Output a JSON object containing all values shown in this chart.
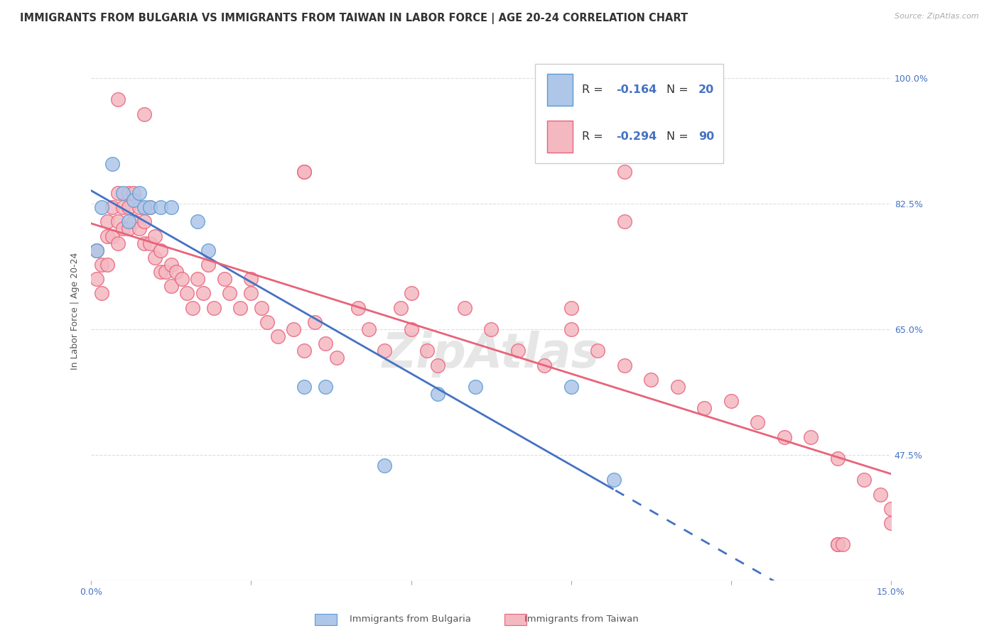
{
  "title": "IMMIGRANTS FROM BULGARIA VS IMMIGRANTS FROM TAIWAN IN LABOR FORCE | AGE 20-24 CORRELATION CHART",
  "source": "Source: ZipAtlas.com",
  "ylabel": "In Labor Force | Age 20-24",
  "xlim": [
    0.0,
    0.15
  ],
  "ylim": [
    0.3,
    1.05
  ],
  "xticks": [
    0.0,
    0.03,
    0.06,
    0.09,
    0.12,
    0.15
  ],
  "xtick_labels": [
    "0.0%",
    "",
    "",
    "",
    "",
    "15.0%"
  ],
  "ytick_labels_right": [
    "100.0%",
    "82.5%",
    "65.0%",
    "47.5%"
  ],
  "ytick_vals_right": [
    1.0,
    0.825,
    0.65,
    0.475
  ],
  "bulgaria_color": "#aec6e8",
  "taiwan_color": "#f4b8c1",
  "bulgaria_edge": "#5b9bd5",
  "taiwan_edge": "#e8637a",
  "trend_bulgaria_color": "#4472c4",
  "trend_taiwan_color": "#e8637a",
  "R_bulgaria": -0.164,
  "N_bulgaria": 20,
  "R_taiwan": -0.294,
  "N_taiwan": 90,
  "bulgaria_x": [
    0.001,
    0.002,
    0.004,
    0.006,
    0.007,
    0.008,
    0.009,
    0.01,
    0.011,
    0.013,
    0.015,
    0.02,
    0.022,
    0.04,
    0.044,
    0.055,
    0.065,
    0.072,
    0.09,
    0.098
  ],
  "bulgaria_y": [
    0.76,
    0.82,
    0.88,
    0.84,
    0.8,
    0.83,
    0.84,
    0.82,
    0.82,
    0.82,
    0.82,
    0.8,
    0.76,
    0.57,
    0.57,
    0.46,
    0.56,
    0.57,
    0.57,
    0.44
  ],
  "taiwan_x": [
    0.001,
    0.001,
    0.002,
    0.002,
    0.003,
    0.003,
    0.003,
    0.004,
    0.004,
    0.005,
    0.005,
    0.005,
    0.006,
    0.006,
    0.007,
    0.007,
    0.007,
    0.008,
    0.008,
    0.009,
    0.009,
    0.01,
    0.01,
    0.011,
    0.011,
    0.012,
    0.012,
    0.013,
    0.013,
    0.014,
    0.015,
    0.015,
    0.016,
    0.017,
    0.018,
    0.019,
    0.02,
    0.021,
    0.022,
    0.023,
    0.025,
    0.026,
    0.028,
    0.03,
    0.032,
    0.033,
    0.035,
    0.038,
    0.04,
    0.04,
    0.042,
    0.044,
    0.046,
    0.05,
    0.052,
    0.055,
    0.058,
    0.06,
    0.063,
    0.065,
    0.07,
    0.075,
    0.08,
    0.085,
    0.09,
    0.095,
    0.1,
    0.1,
    0.105,
    0.11,
    0.115,
    0.12,
    0.125,
    0.13,
    0.135,
    0.14,
    0.14,
    0.145,
    0.148,
    0.15,
    0.15,
    0.005,
    0.01,
    0.04,
    0.1,
    0.14,
    0.141,
    0.03,
    0.06,
    0.09
  ],
  "taiwan_y": [
    0.76,
    0.72,
    0.74,
    0.7,
    0.8,
    0.78,
    0.74,
    0.82,
    0.78,
    0.84,
    0.8,
    0.77,
    0.82,
    0.79,
    0.84,
    0.82,
    0.79,
    0.84,
    0.8,
    0.82,
    0.79,
    0.8,
    0.77,
    0.82,
    0.77,
    0.78,
    0.75,
    0.76,
    0.73,
    0.73,
    0.74,
    0.71,
    0.73,
    0.72,
    0.7,
    0.68,
    0.72,
    0.7,
    0.74,
    0.68,
    0.72,
    0.7,
    0.68,
    0.7,
    0.68,
    0.66,
    0.64,
    0.65,
    0.62,
    0.87,
    0.66,
    0.63,
    0.61,
    0.68,
    0.65,
    0.62,
    0.68,
    0.65,
    0.62,
    0.6,
    0.68,
    0.65,
    0.62,
    0.6,
    0.65,
    0.62,
    0.6,
    0.8,
    0.58,
    0.57,
    0.54,
    0.55,
    0.52,
    0.5,
    0.5,
    0.47,
    0.35,
    0.44,
    0.42,
    0.4,
    0.38,
    0.97,
    0.95,
    0.87,
    0.87,
    0.35,
    0.35,
    0.72,
    0.7,
    0.68
  ],
  "watermark": "ZipAtlas",
  "grid_color": "#dddddd",
  "background_color": "#ffffff",
  "title_fontsize": 10.5,
  "axis_label_fontsize": 9,
  "tick_fontsize": 9,
  "legend_fontsize": 11
}
